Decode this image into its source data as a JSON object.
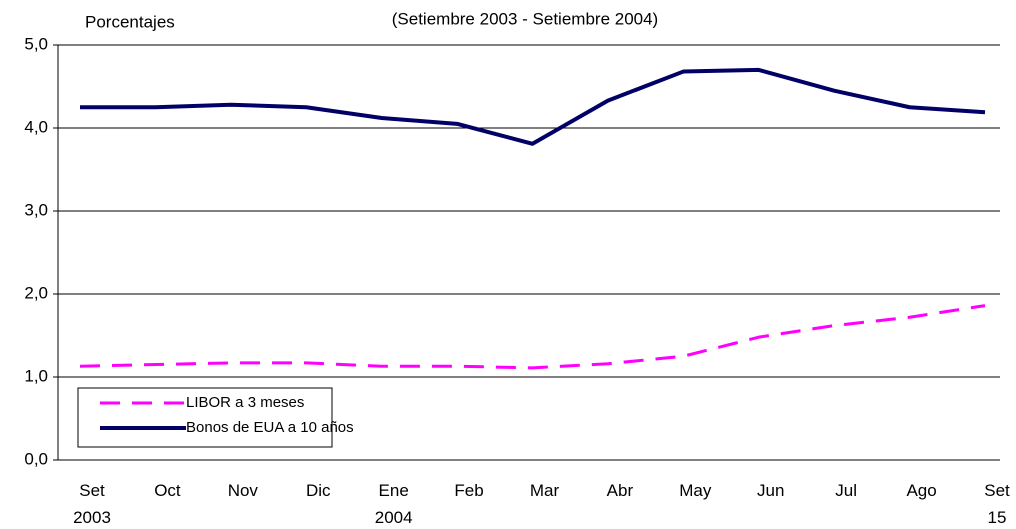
{
  "chart_data": {
    "type": "line",
    "title": "(Setiembre 2003 - Setiembre 2004)",
    "y_label": "Porcentajes",
    "categories": [
      "Set 2003",
      "Oct",
      "Nov",
      "Dic",
      "Ene 2004",
      "Feb",
      "Mar",
      "Abr",
      "May",
      "Jun",
      "Jul",
      "Ago",
      "Set 15"
    ],
    "series": [
      {
        "name": "LIBOR a 3  meses",
        "color": "#ff00ff",
        "dash": true,
        "values": [
          1.13,
          1.15,
          1.17,
          1.17,
          1.13,
          1.13,
          1.11,
          1.16,
          1.25,
          1.48,
          1.62,
          1.72,
          1.86
        ]
      },
      {
        "name": "Bonos de EUA a 10 años",
        "color": "#000066",
        "dash": false,
        "values": [
          4.25,
          4.25,
          4.28,
          4.25,
          4.12,
          4.05,
          3.81,
          4.33,
          4.68,
          4.7,
          4.45,
          4.25,
          4.19
        ]
      }
    ],
    "ylim": [
      0,
      5
    ],
    "yticks": [
      {
        "value": 0,
        "label": "0,0"
      },
      {
        "value": 1,
        "label": "1,0"
      },
      {
        "value": 2,
        "label": "2,0"
      },
      {
        "value": 3,
        "label": "3,0"
      },
      {
        "value": 4,
        "label": "4,0"
      },
      {
        "value": 5,
        "label": "5,0"
      }
    ],
    "grid": true,
    "legend": "lower left"
  }
}
